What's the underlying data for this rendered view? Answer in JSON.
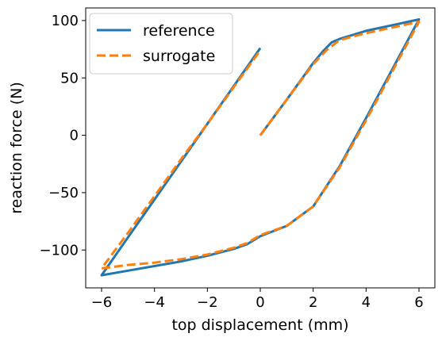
{
  "chart_data": {
    "type": "line",
    "xlabel": "top displacement (mm)",
    "ylabel": "reaction force (N)",
    "xlim": [
      -6.6,
      6.6
    ],
    "ylim": [
      -133,
      111
    ],
    "xticks": [
      -6,
      -4,
      -2,
      0,
      2,
      4,
      6
    ],
    "yticks": [
      -100,
      -50,
      0,
      50,
      100
    ],
    "xtick_labels": [
      "−6",
      "−4",
      "−2",
      "0",
      "2",
      "4",
      "6"
    ],
    "ytick_labels": [
      "−100",
      "−50",
      "0",
      "50",
      "100"
    ],
    "grid": false,
    "legend_position": "top-left",
    "series": [
      {
        "name": "reference",
        "color": "#1f77b4",
        "style": "solid",
        "x": [
          0,
          1.0,
          2.0,
          2.4,
          2.7,
          3.0,
          4.0,
          5.0,
          6.0,
          5.0,
          4.0,
          3.0,
          2.0,
          1.0,
          0.0,
          -0.5,
          -1.0,
          -2.0,
          -3.0,
          -4.0,
          -5.0,
          -6.0,
          -5.0,
          -4.0,
          -3.0,
          -2.0,
          -1.0,
          0.0
        ],
        "y": [
          0,
          31,
          63,
          74,
          81,
          84,
          91,
          96,
          101,
          58,
          15,
          -27,
          -62,
          -79,
          -88,
          -95,
          -99,
          -105,
          -110,
          -114,
          -118,
          -122,
          -89,
          -56,
          -23,
          10,
          43,
          76
        ]
      },
      {
        "name": "surrogate",
        "color": "#ff7f0e",
        "style": "dashed",
        "x": [
          0,
          1.0,
          2.0,
          2.5,
          3.0,
          4.0,
          5.0,
          6.0,
          5.0,
          4.0,
          3.0,
          2.0,
          1.0,
          0.0,
          -0.5,
          -1.0,
          -2.0,
          -3.0,
          -4.0,
          -5.0,
          -6.0,
          -5.0,
          -4.0,
          -3.0,
          -2.0,
          -1.0,
          0.0
        ],
        "y": [
          0,
          31,
          62,
          74,
          83,
          89,
          94,
          99,
          56,
          13,
          -28,
          -62,
          -79,
          -87,
          -94,
          -98,
          -104,
          -108,
          -111,
          -113,
          -116,
          -85,
          -53,
          -21,
          10,
          42,
          74
        ]
      }
    ]
  }
}
